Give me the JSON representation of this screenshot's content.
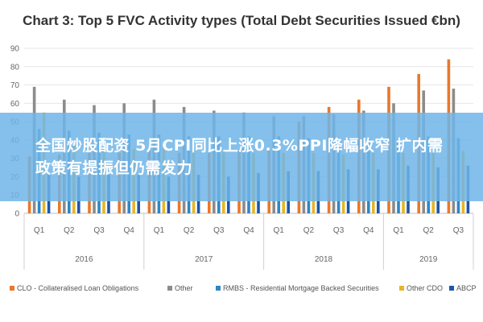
{
  "chart_data": {
    "type": "bar",
    "title": "Chart 3: Top 5 FVC Activity types (Total Debt Securities Issued €bn)",
    "xlabel": "",
    "ylabel": "",
    "ylim": [
      0,
      90
    ],
    "yticks": [
      0,
      10,
      20,
      30,
      40,
      50,
      60,
      70,
      80,
      90
    ],
    "grid": true,
    "legend_position": "bottom",
    "categories": [
      "Q1",
      "Q2",
      "Q3",
      "Q4",
      "Q1",
      "Q2",
      "Q3",
      "Q4",
      "Q1",
      "Q2",
      "Q3",
      "Q4",
      "Q1",
      "Q2",
      "Q3"
    ],
    "years": [
      {
        "label": "2016",
        "start": 0,
        "count": 4
      },
      {
        "label": "2017",
        "start": 4,
        "count": 4
      },
      {
        "label": "2018",
        "start": 8,
        "count": 4
      },
      {
        "label": "2019",
        "start": 12,
        "count": 3
      }
    ],
    "series": [
      {
        "name": "CLO - Collateralised Loan Obligations",
        "color": "#e8782c",
        "values": [
          31,
          32,
          33,
          33,
          34,
          33,
          33,
          34,
          35,
          50,
          58,
          62,
          69,
          76,
          84
        ]
      },
      {
        "name": "Other",
        "color": "#8c8c8c",
        "values": [
          69,
          62,
          59,
          60,
          62,
          58,
          56,
          55,
          53,
          53,
          54,
          56,
          60,
          67,
          68
        ]
      },
      {
        "name": "RMBS - Residential Mortgage Backed Securities",
        "color": "#2f86c4",
        "values": [
          46,
          45,
          44,
          43,
          43,
          42,
          42,
          42,
          42,
          41,
          41,
          41,
          40,
          42,
          41
        ]
      },
      {
        "name": "Other CDO",
        "color": "#e6b52a",
        "values": [
          55,
          37,
          36,
          35,
          36,
          35,
          34,
          33,
          33,
          33,
          32,
          33,
          33,
          33,
          34
        ]
      },
      {
        "name": "ABCP",
        "color": "#1f57a8",
        "values": [
          22,
          20,
          21,
          21,
          20,
          21,
          20,
          22,
          23,
          23,
          24,
          24,
          26,
          25,
          26
        ]
      }
    ]
  },
  "overlay": {
    "text": "全国炒股配资 5月CPI同比上涨0.3%PPI降幅收窄 扩内需政策有提振但仍需发力"
  }
}
